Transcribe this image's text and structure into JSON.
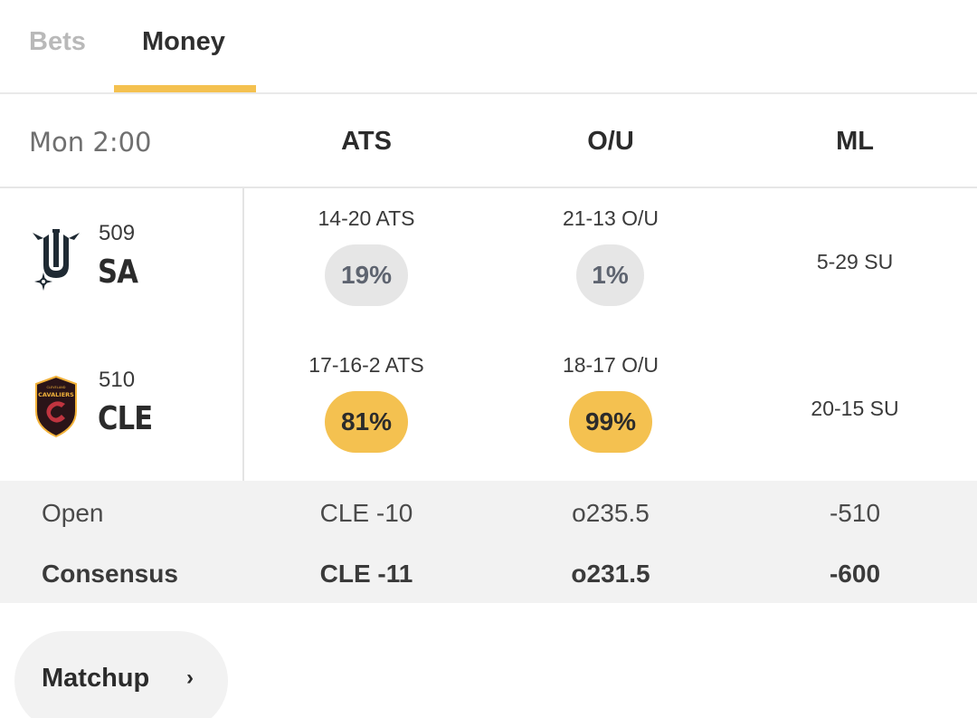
{
  "tabs": [
    {
      "label": "Bets",
      "active": false
    },
    {
      "label": "Money",
      "active": true
    }
  ],
  "accent_color": "#f4c150",
  "header": {
    "time": "Mon 2:00",
    "columns": [
      "ATS",
      "O/U",
      "ML"
    ]
  },
  "teams": [
    {
      "number": "509",
      "abbr": "SA",
      "logo_icon": "spurs-logo-icon",
      "ats_record": "14-20 ATS",
      "ats_pct": "19%",
      "ou_record": "21-13 O/U",
      "ou_pct": "1%",
      "ml_record": "5-29 SU"
    },
    {
      "number": "510",
      "abbr": "CLE",
      "logo_icon": "cavaliers-logo-icon",
      "ats_record": "17-16-2 ATS",
      "ats_pct": "81%",
      "ou_record": "18-17 O/U",
      "ou_pct": "99%",
      "ml_record": "20-15 SU"
    }
  ],
  "lines": {
    "open": {
      "label": "Open",
      "ats": "CLE -10",
      "ou": "o235.5",
      "ml": "-510"
    },
    "consensus": {
      "label": "Consensus",
      "ats": "CLE -11",
      "ou": "o231.5",
      "ml": "-600"
    }
  },
  "matchup_button": {
    "label": "Matchup",
    "icon": "chevron-right-icon"
  }
}
